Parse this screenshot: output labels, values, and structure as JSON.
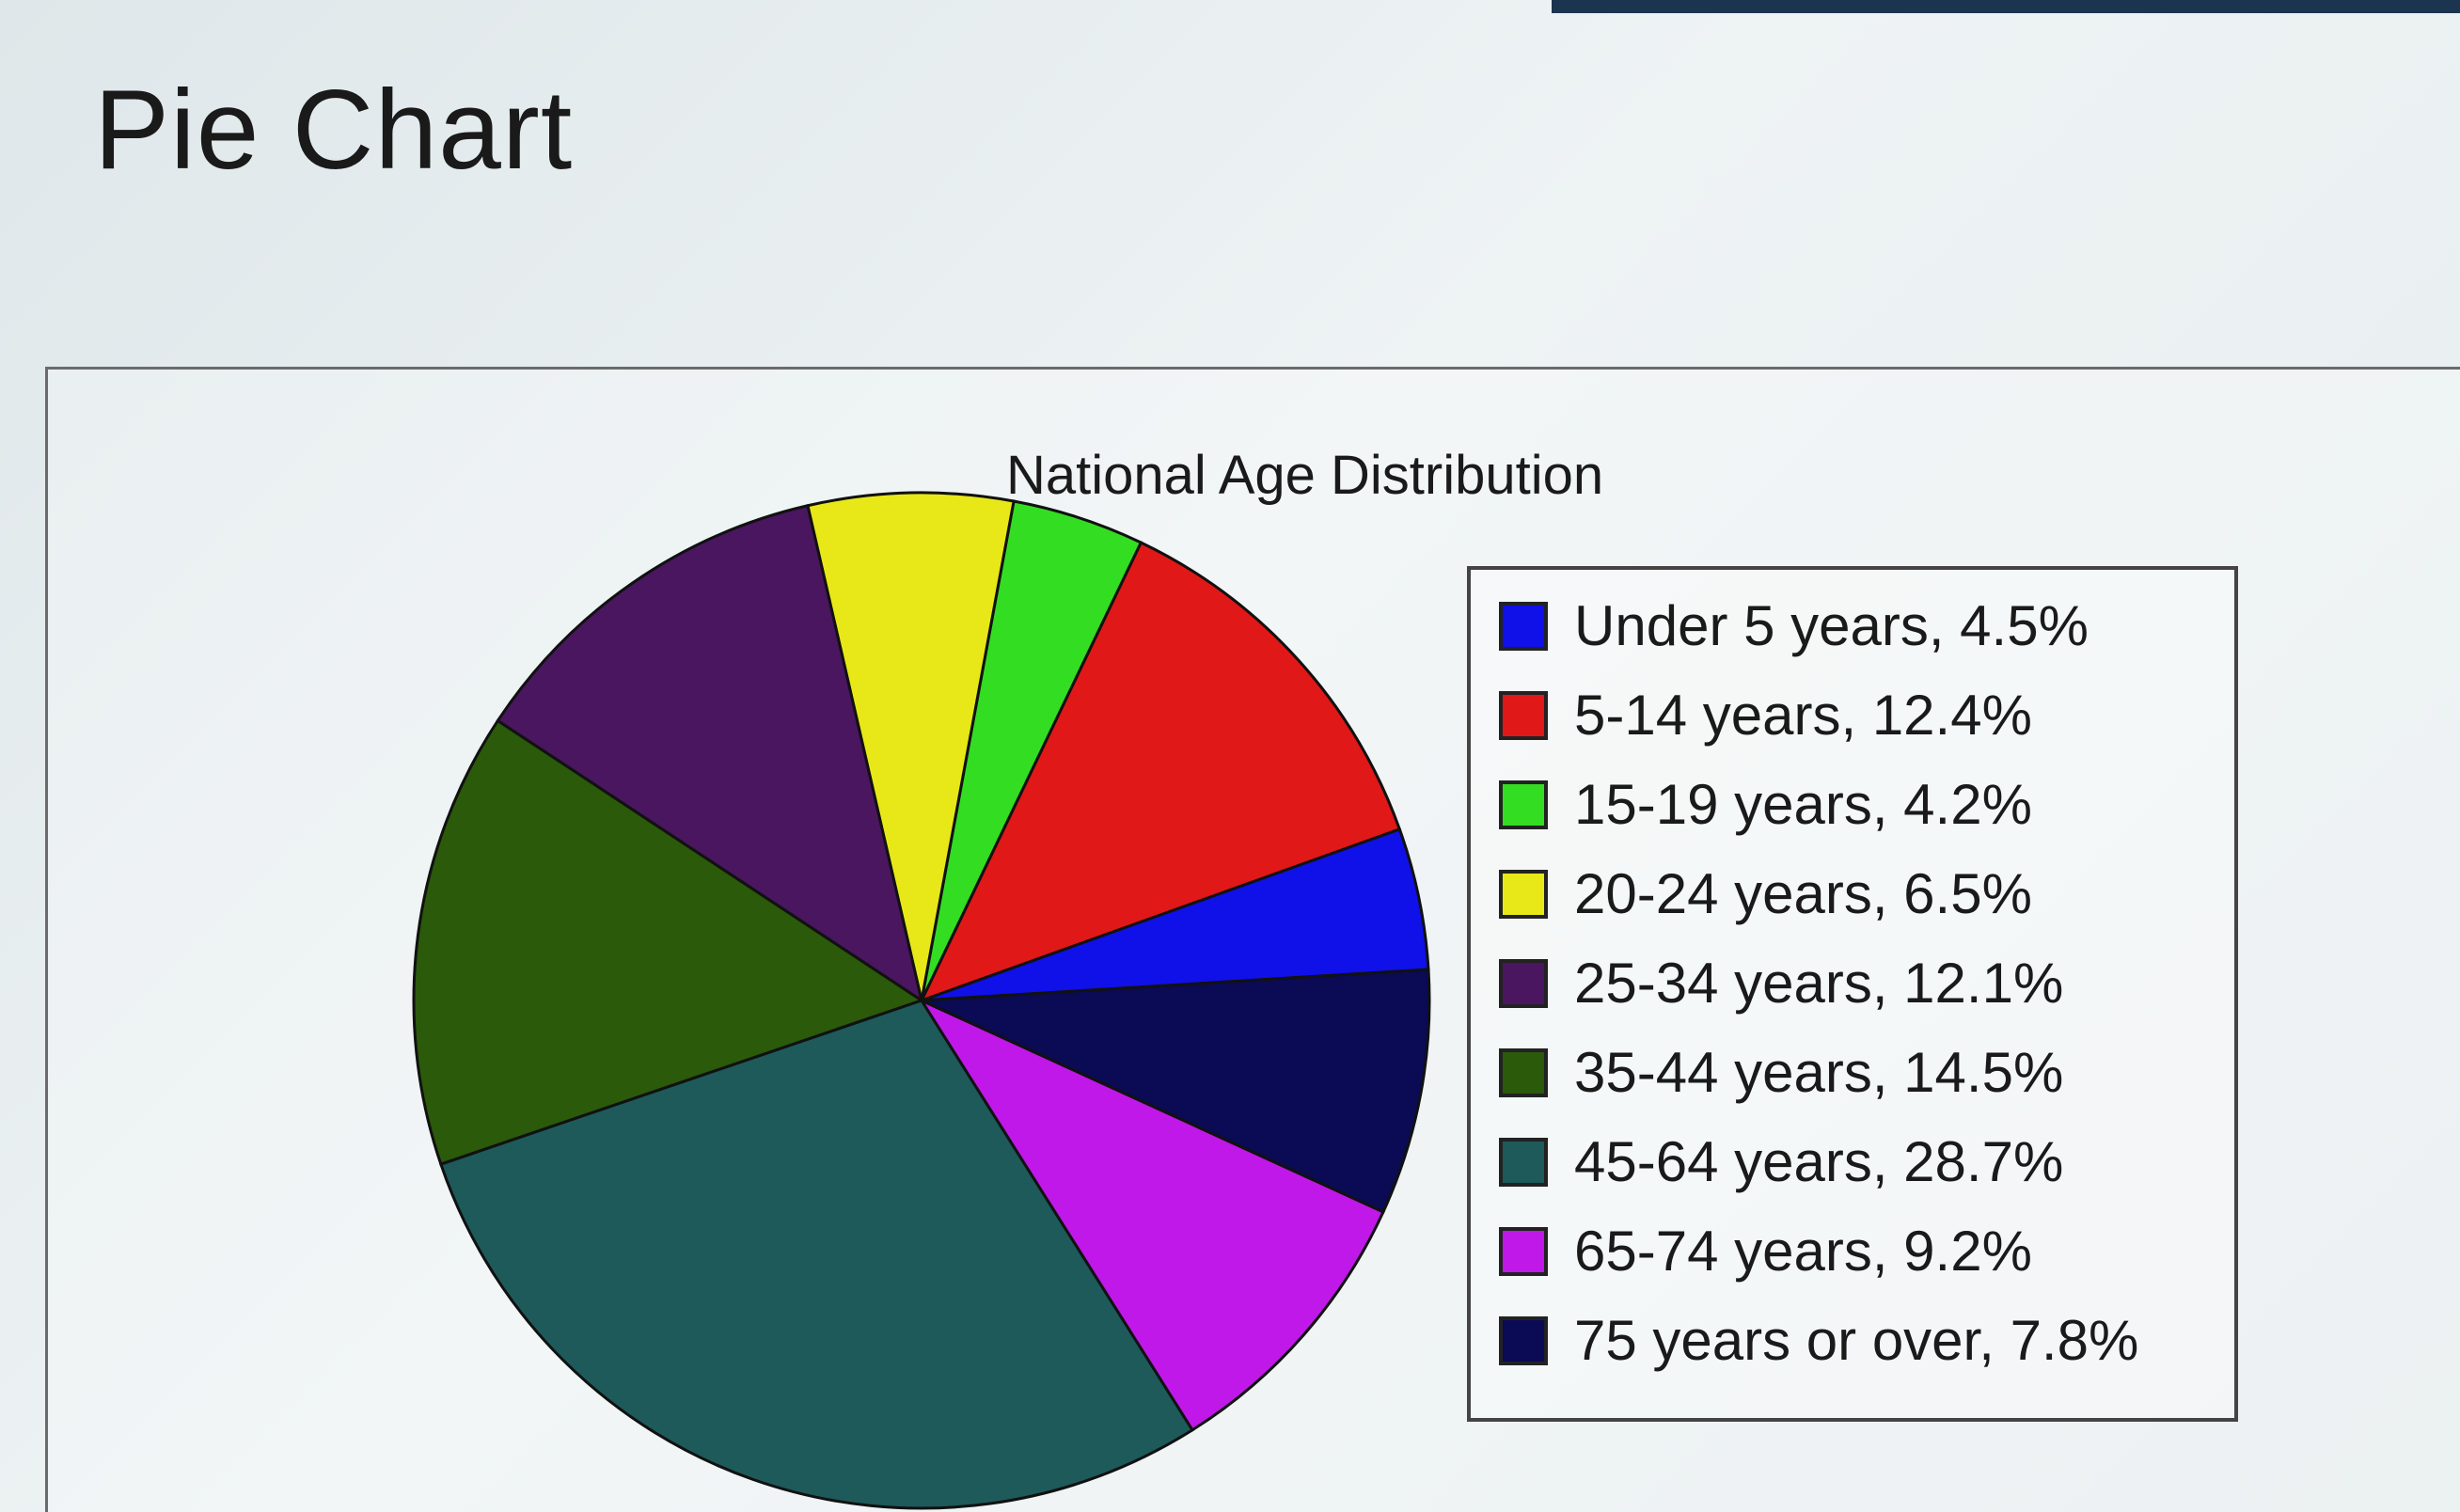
{
  "page": {
    "heading": "Pie Chart"
  },
  "colors": {
    "topbar": "#1b3550",
    "border": "#444444"
  },
  "chart_data": {
    "type": "pie",
    "title": "National Age Distribution",
    "legend_position": "right",
    "slices": [
      {
        "label": "Under 5 years, 4.5%",
        "category": "Under 5 years",
        "value": 4.5,
        "color": "#1010e8"
      },
      {
        "label": "5-14 years, 12.4%",
        "category": "5-14 years",
        "value": 12.4,
        "color": "#e01818"
      },
      {
        "label": "15-19 years, 4.2%",
        "category": "15-19 years",
        "value": 4.2,
        "color": "#33dd22"
      },
      {
        "label": "20-24 years, 6.5%",
        "category": "20-24 years",
        "value": 6.5,
        "color": "#e8e818"
      },
      {
        "label": "25-34 years, 12.1%",
        "category": "25-34 years",
        "value": 12.1,
        "color": "#4a1660"
      },
      {
        "label": "35-44 years, 14.5%",
        "category": "35-44 years",
        "value": 14.5,
        "color": "#2a5a0a"
      },
      {
        "label": "45-64 years, 28.7%",
        "category": "45-64 years",
        "value": 28.7,
        "color": "#1e5a5a"
      },
      {
        "label": "65-74 years, 9.2%",
        "category": "65-74 years",
        "value": 9.2,
        "color": "#c018e8"
      },
      {
        "label": "75 years or over, 7.8%",
        "category": "75 years or over",
        "value": 7.8,
        "color": "#0a0a55"
      }
    ]
  }
}
